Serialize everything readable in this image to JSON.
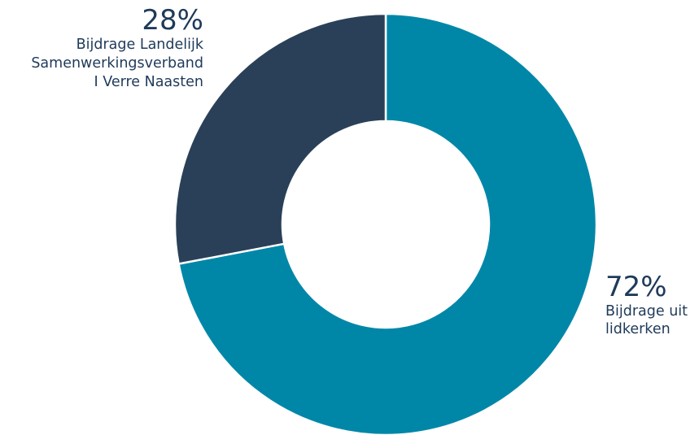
{
  "chart_data": {
    "type": "pie",
    "variant": "donut",
    "categories": [
      "Bijdrage uit lidkerken",
      "Bijdrage Landelijk Samenwerkingsverband I Verre Naasten"
    ],
    "values": [
      72,
      28
    ],
    "colors": [
      "#0087a8",
      "#2a4058"
    ],
    "value_labels": [
      "72%",
      "28%"
    ],
    "label_lines": [
      [
        "Bijdrage uit",
        "lidkerken"
      ],
      [
        "Bijdrage Landelijk",
        "Samenwerkingsverband",
        "I Verre Naasten"
      ]
    ]
  }
}
